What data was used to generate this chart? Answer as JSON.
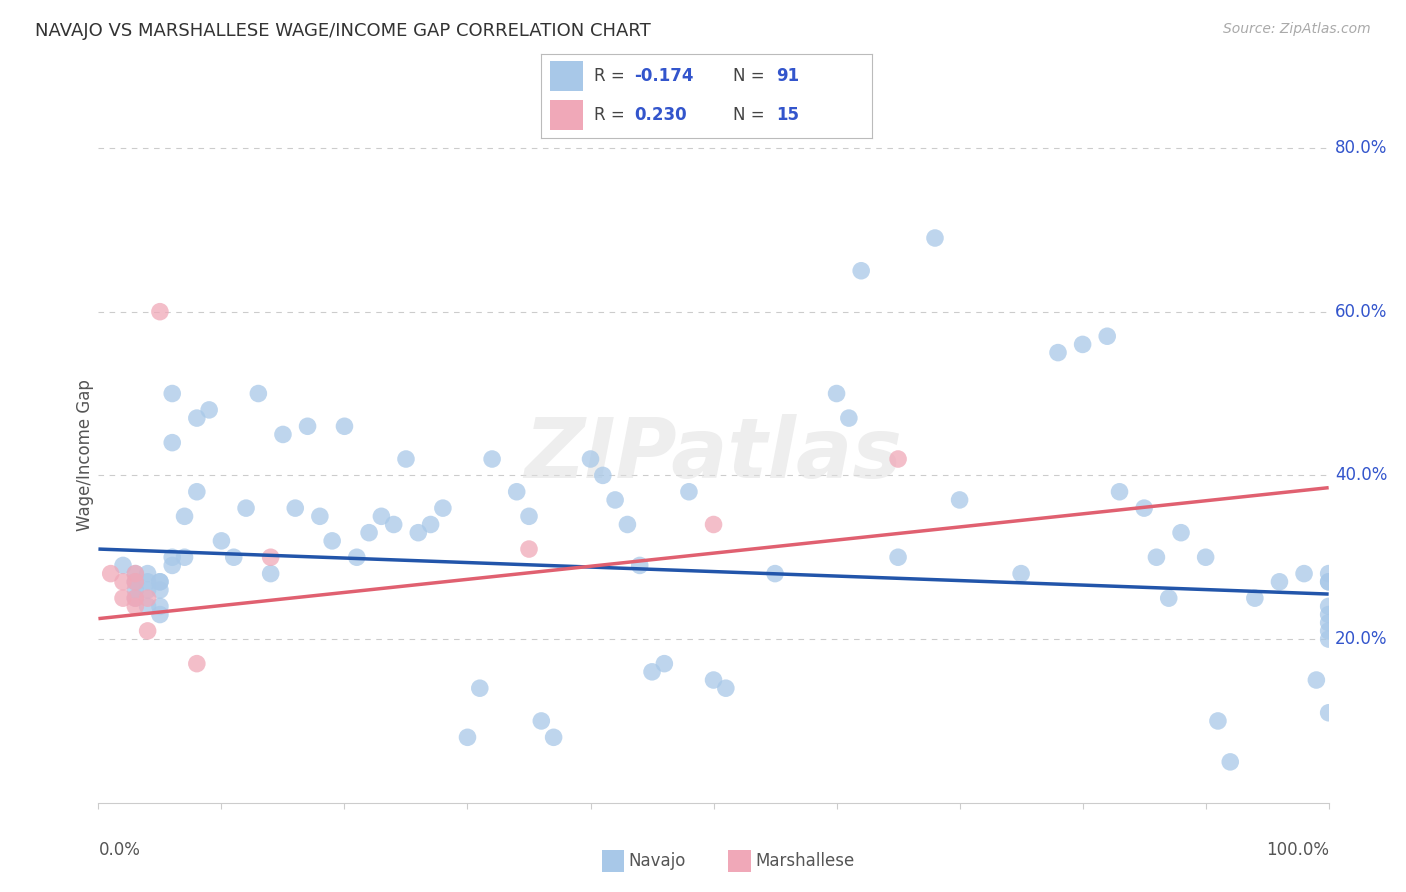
{
  "title": "NAVAJO VS MARSHALLESE WAGE/INCOME GAP CORRELATION CHART",
  "source": "Source: ZipAtlas.com",
  "ylabel": "Wage/Income Gap",
  "navajo_R": -0.174,
  "navajo_N": 91,
  "marshallese_R": 0.23,
  "marshallese_N": 15,
  "navajo_color": "#A8C8E8",
  "marshallese_color": "#F0A8B8",
  "navajo_line_color": "#2255AA",
  "marshallese_line_color": "#E06070",
  "background_color": "#FFFFFF",
  "grid_color": "#CCCCCC",
  "title_fontsize": 13,
  "axis_label_color": "#555555",
  "value_color": "#3355CC",
  "watermark": "ZIPatlas",
  "navajo_x": [
    0.02,
    0.03,
    0.03,
    0.03,
    0.03,
    0.04,
    0.04,
    0.04,
    0.04,
    0.05,
    0.05,
    0.05,
    0.05,
    0.05,
    0.06,
    0.06,
    0.06,
    0.06,
    0.07,
    0.07,
    0.08,
    0.08,
    0.09,
    0.1,
    0.11,
    0.12,
    0.13,
    0.14,
    0.15,
    0.16,
    0.17,
    0.18,
    0.19,
    0.2,
    0.21,
    0.22,
    0.23,
    0.24,
    0.25,
    0.26,
    0.27,
    0.28,
    0.3,
    0.31,
    0.32,
    0.34,
    0.35,
    0.36,
    0.37,
    0.4,
    0.41,
    0.42,
    0.43,
    0.44,
    0.45,
    0.46,
    0.48,
    0.5,
    0.51,
    0.55,
    0.6,
    0.61,
    0.62,
    0.65,
    0.68,
    0.7,
    0.75,
    0.78,
    0.8,
    0.82,
    0.83,
    0.85,
    0.86,
    0.87,
    0.88,
    0.9,
    0.91,
    0.92,
    0.94,
    0.96,
    0.98,
    0.99,
    1.0,
    1.0,
    1.0,
    1.0,
    1.0,
    1.0,
    1.0,
    1.0,
    1.0
  ],
  "navajo_y": [
    0.29,
    0.26,
    0.27,
    0.28,
    0.25,
    0.28,
    0.27,
    0.26,
    0.24,
    0.27,
    0.26,
    0.27,
    0.23,
    0.24,
    0.3,
    0.29,
    0.44,
    0.5,
    0.35,
    0.3,
    0.47,
    0.38,
    0.48,
    0.32,
    0.3,
    0.36,
    0.5,
    0.28,
    0.45,
    0.36,
    0.46,
    0.35,
    0.32,
    0.46,
    0.3,
    0.33,
    0.35,
    0.34,
    0.42,
    0.33,
    0.34,
    0.36,
    0.08,
    0.14,
    0.42,
    0.38,
    0.35,
    0.1,
    0.08,
    0.42,
    0.4,
    0.37,
    0.34,
    0.29,
    0.16,
    0.17,
    0.38,
    0.15,
    0.14,
    0.28,
    0.5,
    0.47,
    0.65,
    0.3,
    0.69,
    0.37,
    0.28,
    0.55,
    0.56,
    0.57,
    0.38,
    0.36,
    0.3,
    0.25,
    0.33,
    0.3,
    0.1,
    0.05,
    0.25,
    0.27,
    0.28,
    0.15,
    0.27,
    0.24,
    0.23,
    0.21,
    0.2,
    0.22,
    0.28,
    0.11,
    0.27
  ],
  "marshallese_x": [
    0.01,
    0.02,
    0.02,
    0.03,
    0.03,
    0.03,
    0.03,
    0.04,
    0.04,
    0.05,
    0.08,
    0.14,
    0.35,
    0.5,
    0.65
  ],
  "marshallese_y": [
    0.28,
    0.27,
    0.25,
    0.28,
    0.27,
    0.25,
    0.24,
    0.25,
    0.21,
    0.6,
    0.17,
    0.3,
    0.31,
    0.34,
    0.42
  ],
  "navajo_trend": [
    0.31,
    0.255
  ],
  "marshallese_trend": [
    0.225,
    0.385
  ],
  "xmin": 0.0,
  "xmax": 1.0,
  "ymin": 0.0,
  "ymax": 0.85
}
